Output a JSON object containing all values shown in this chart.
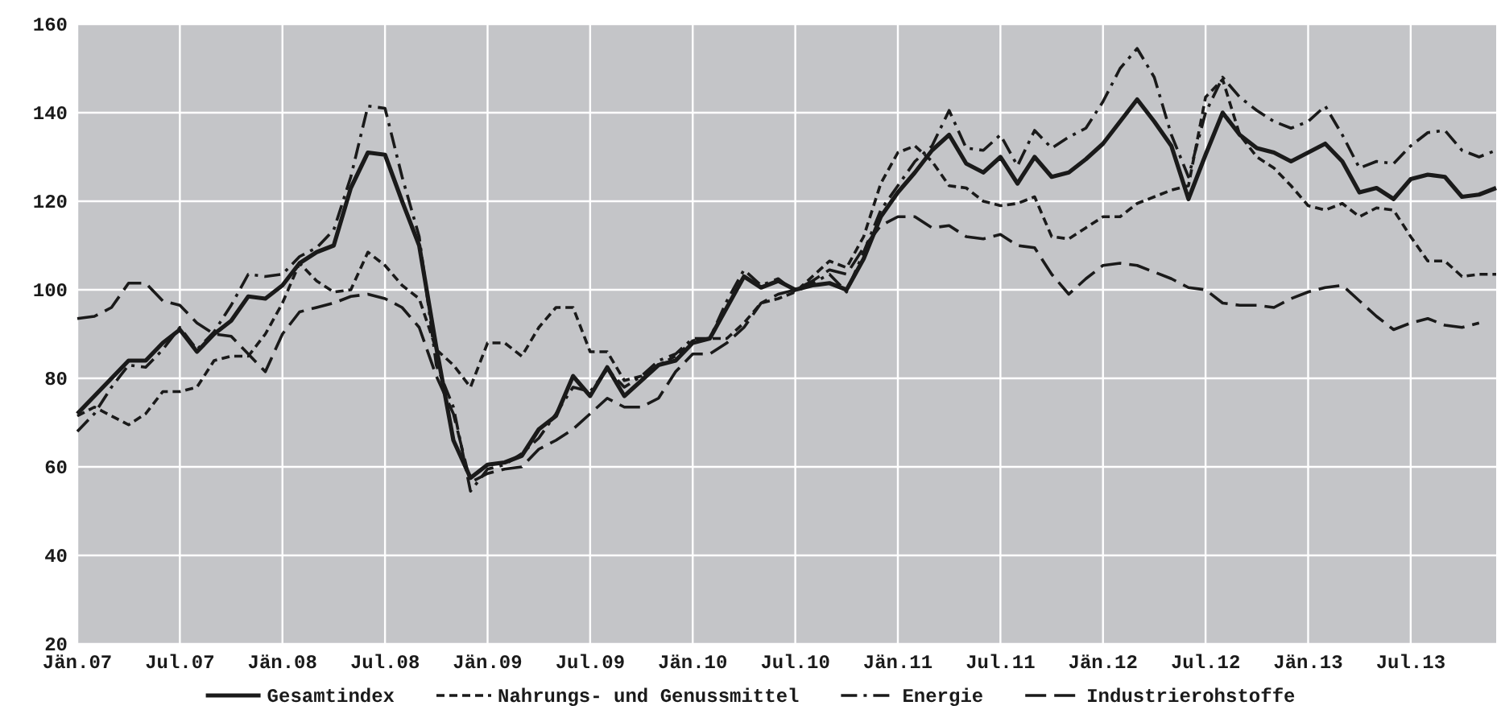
{
  "chart_data": {
    "type": "line",
    "categories": [
      "Jän.07",
      null,
      null,
      null,
      null,
      null,
      "Jul.07",
      null,
      null,
      null,
      null,
      null,
      "Jän.08",
      null,
      null,
      null,
      null,
      null,
      "Jul.08",
      null,
      null,
      null,
      null,
      null,
      "Jän.09",
      null,
      null,
      null,
      null,
      null,
      "Jul.09",
      null,
      null,
      null,
      null,
      null,
      "Jän.10",
      null,
      null,
      null,
      null,
      null,
      "Jul.10",
      null,
      null,
      null,
      null,
      null,
      "Jän.11",
      null,
      null,
      null,
      null,
      null,
      "Jul.11",
      null,
      null,
      null,
      null,
      null,
      "Jän.12",
      null,
      null,
      null,
      null,
      null,
      "Jul.12",
      null,
      null,
      null,
      null,
      null,
      "Jän.13",
      null,
      null,
      null,
      null,
      null,
      "Jul.13",
      null,
      null,
      null,
      null,
      null
    ],
    "series": [
      {
        "name": "Gesamtindex",
        "color": "#1a1a1a",
        "line_style": "solid",
        "values": [
          72,
          76,
          80,
          84,
          84,
          88,
          91,
          86,
          90,
          93,
          98.5,
          98,
          101,
          106,
          108.5,
          110,
          123,
          131,
          130.5,
          120,
          110,
          87,
          66,
          57.5,
          60.5,
          61,
          62.5,
          68.5,
          71.5,
          80.5,
          76,
          82.5,
          76,
          79.5,
          83,
          84,
          88,
          89,
          96,
          103,
          100.5,
          102,
          100,
          101,
          101.5,
          100,
          107,
          116.5,
          122,
          126.5,
          131.5,
          135,
          128.5,
          126.5,
          130,
          124,
          130,
          125.5,
          126.5,
          129.5,
          133,
          138,
          143,
          138,
          132.5,
          120.5,
          130.5,
          140,
          135,
          132,
          131,
          129,
          131,
          133,
          129,
          122,
          123,
          120.5,
          125,
          126,
          125.5,
          121,
          121.5,
          123
        ]
      },
      {
        "name": "Nahrungs- und Genussmittel",
        "color": "#1a1a1a",
        "line_style": "dashed",
        "values": [
          71.5,
          73.5,
          71.5,
          69.5,
          72,
          77,
          77,
          78,
          84,
          85,
          85,
          90,
          97,
          106,
          102,
          99.5,
          100,
          108.5,
          105.5,
          101,
          98,
          86.5,
          83,
          78,
          88,
          88,
          85,
          91.5,
          96,
          96,
          86,
          86,
          79.5,
          80.5,
          83,
          85,
          88.5,
          89,
          89,
          92.5,
          97,
          98,
          99.5,
          103,
          106.5,
          105,
          112,
          124,
          131,
          132.5,
          129,
          123.5,
          123,
          120,
          119,
          119.5,
          121,
          112,
          111.5,
          114,
          116.5,
          116.5,
          119.5,
          121,
          122.5,
          123.5,
          143.5,
          147.5,
          135,
          130,
          127.5,
          123.5,
          119,
          118,
          119.5,
          116.5,
          118.5,
          118,
          112,
          106.5,
          106.5,
          103,
          103.5,
          103.5
        ]
      },
      {
        "name": "Energie",
        "color": "#1a1a1a",
        "line_style": "dashdot",
        "values": [
          68,
          72,
          78,
          83,
          82.5,
          86.5,
          91.5,
          86.5,
          90.5,
          96.5,
          103.5,
          103,
          103.5,
          107.5,
          109.5,
          113.5,
          125.5,
          141.5,
          141,
          125.5,
          112,
          83,
          73.5,
          54.5,
          59.5,
          60.5,
          63,
          66.5,
          72,
          78,
          77,
          82,
          78,
          80.5,
          84,
          85.5,
          89,
          89,
          97.5,
          104.5,
          101,
          102.5,
          99.5,
          101.5,
          103.5,
          99.5,
          108.5,
          118,
          123.5,
          129,
          132.5,
          140.5,
          132,
          131.5,
          135,
          128,
          136,
          132,
          134.5,
          136.5,
          142.5,
          150,
          154.5,
          148,
          135,
          125.5,
          140,
          148,
          143.5,
          140.5,
          138,
          136.5,
          138,
          141.5,
          135,
          127.5,
          129,
          128.5,
          132.5,
          135.5,
          136,
          131.5,
          130,
          131.5
        ]
      },
      {
        "name": "Industrierohstoffe",
        "color": "#1a1a1a",
        "line_style": "longdash",
        "values": [
          93.5,
          94,
          96,
          101.5,
          101.5,
          97.5,
          96.5,
          92.5,
          90,
          89.5,
          85.5,
          81.5,
          90,
          95,
          96,
          97,
          98.5,
          99,
          98,
          96,
          91.5,
          80.5,
          72,
          56.5,
          58.5,
          59.5,
          60,
          64,
          66,
          68.5,
          72,
          75.5,
          73.5,
          73.5,
          75.5,
          81.5,
          85.5,
          85.5,
          88,
          91.5,
          97,
          99,
          100,
          102,
          104.5,
          103.5,
          109.5,
          114.5,
          116.5,
          116.5,
          114,
          114.5,
          112,
          111.5,
          112.5,
          110,
          109.5,
          103.5,
          99,
          102.5,
          105.5,
          106,
          105.5,
          104,
          102.5,
          100.5,
          100,
          97,
          96.5,
          96.5,
          96,
          98,
          99.5,
          100.5,
          101,
          97.5,
          94,
          91,
          92.5,
          93.5,
          92,
          91.5,
          92.5,
          null
        ]
      }
    ],
    "ylim": [
      20,
      160
    ],
    "yticks": [
      20,
      40,
      60,
      80,
      100,
      120,
      140,
      160
    ],
    "grid": true,
    "legend": "bottom"
  }
}
